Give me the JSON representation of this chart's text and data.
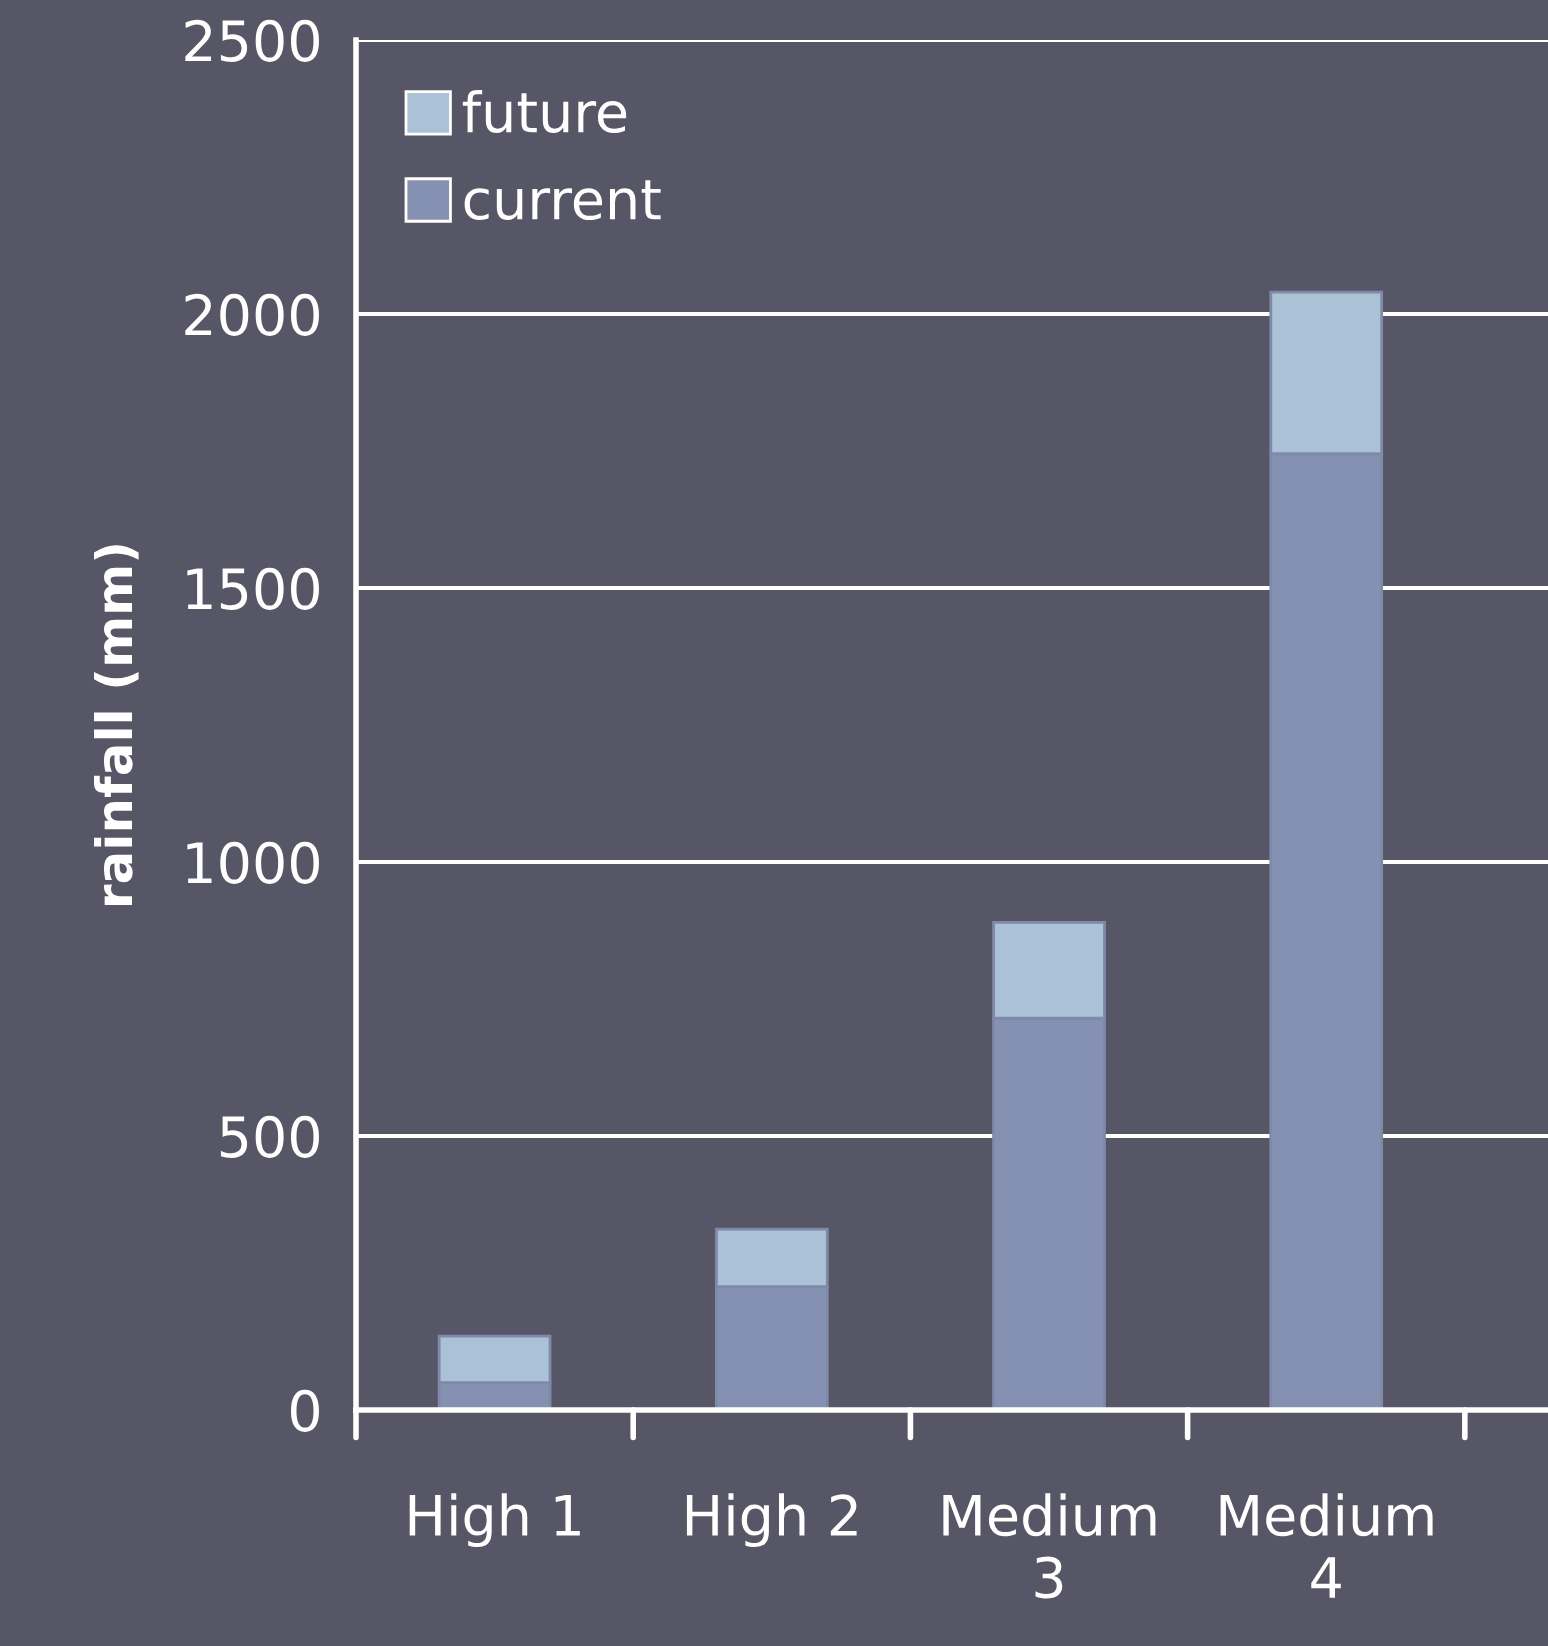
{
  "chart_data": {
    "type": "bar",
    "stacked": true,
    "ylabel": "rainfall (mm)",
    "categories": [
      "High 1",
      "High 2",
      "Medium 3",
      "Medium 4"
    ],
    "series": [
      {
        "name": "current",
        "color": "#8591b2",
        "values": [
          50,
          225,
          715,
          1745
        ]
      },
      {
        "name": "future",
        "color": "#abc2d6",
        "values": [
          85,
          105,
          175,
          295
        ]
      }
    ],
    "ylim": [
      0,
      2500
    ],
    "yticks": [
      0,
      500,
      1000,
      1500,
      2000,
      2500
    ],
    "grid": "y",
    "legend": "top left"
  }
}
